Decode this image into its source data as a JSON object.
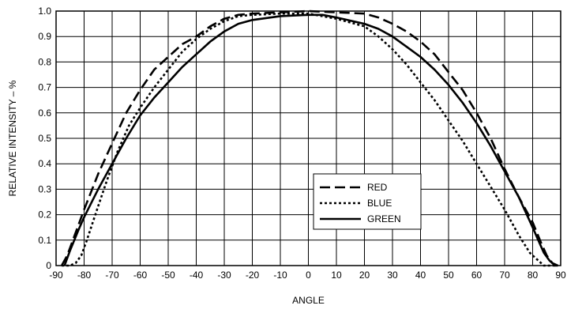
{
  "chart_data": {
    "type": "line",
    "title": "",
    "xlabel": "ANGLE",
    "ylabel": "RELATIVE INTENSITY – %",
    "xlim": [
      -90,
      90
    ],
    "ylim": [
      0,
      1.0
    ],
    "x_ticks": [
      "-90",
      "-80",
      "-70",
      "-60",
      "-50",
      "-40",
      "-30",
      "-20",
      "-10",
      "0",
      "10",
      "20",
      "30",
      "40",
      "50",
      "60",
      "70",
      "80",
      "90"
    ],
    "y_ticks": [
      "0",
      "0.1",
      "0.2",
      "0.3",
      "0.4",
      "0.5",
      "0.6",
      "0.7",
      "0.8",
      "0.9",
      "1.0"
    ],
    "grid": true,
    "legend_position": "lower-center-right",
    "series": [
      {
        "name": "RED",
        "style": "dashed",
        "color": "#000000",
        "x": [
          -88,
          -86,
          -84,
          -82,
          -80,
          -75,
          -70,
          -65,
          -60,
          -55,
          -50,
          -45,
          -40,
          -35,
          -30,
          -25,
          -20,
          -10,
          0,
          10,
          20,
          25,
          30,
          35,
          40,
          45,
          50,
          55,
          60,
          65,
          70,
          75,
          80,
          83,
          85,
          87,
          89
        ],
        "y": [
          0.0,
          0.04,
          0.1,
          0.16,
          0.22,
          0.36,
          0.48,
          0.6,
          0.69,
          0.77,
          0.82,
          0.87,
          0.9,
          0.94,
          0.97,
          0.985,
          0.99,
          0.995,
          1.0,
          0.995,
          0.99,
          0.975,
          0.95,
          0.92,
          0.88,
          0.83,
          0.76,
          0.69,
          0.6,
          0.5,
          0.38,
          0.27,
          0.17,
          0.09,
          0.04,
          0.01,
          0.0
        ]
      },
      {
        "name": "BLUE",
        "style": "dotted",
        "color": "#000000",
        "x": [
          -88,
          -85,
          -83,
          -81,
          -79,
          -76,
          -72,
          -68,
          -64,
          -60,
          -55,
          -50,
          -45,
          -40,
          -35,
          -30,
          -25,
          -20,
          -10,
          0,
          10,
          20,
          25,
          30,
          35,
          40,
          45,
          50,
          55,
          60,
          65,
          70,
          75,
          79,
          82,
          84,
          86,
          88
        ],
        "y": [
          0.0,
          0.0,
          0.01,
          0.04,
          0.1,
          0.2,
          0.33,
          0.45,
          0.55,
          0.62,
          0.7,
          0.77,
          0.84,
          0.89,
          0.93,
          0.96,
          0.98,
          0.985,
          0.99,
          0.99,
          0.97,
          0.94,
          0.9,
          0.85,
          0.79,
          0.72,
          0.65,
          0.57,
          0.49,
          0.4,
          0.31,
          0.22,
          0.12,
          0.05,
          0.02,
          0.0,
          0.0,
          0.0
        ]
      },
      {
        "name": "GREEN",
        "style": "solid",
        "color": "#000000",
        "x": [
          -87,
          -85,
          -82,
          -80,
          -75,
          -70,
          -65,
          -60,
          -55,
          -50,
          -45,
          -40,
          -35,
          -30,
          -25,
          -20,
          -10,
          0,
          5,
          10,
          20,
          25,
          30,
          35,
          40,
          45,
          50,
          55,
          60,
          65,
          70,
          75,
          80,
          82,
          84,
          86,
          88,
          89
        ],
        "y": [
          0.0,
          0.06,
          0.14,
          0.19,
          0.3,
          0.4,
          0.5,
          0.59,
          0.66,
          0.72,
          0.78,
          0.83,
          0.88,
          0.92,
          0.95,
          0.965,
          0.98,
          0.985,
          0.985,
          0.975,
          0.95,
          0.93,
          0.9,
          0.86,
          0.82,
          0.77,
          0.71,
          0.64,
          0.56,
          0.47,
          0.37,
          0.27,
          0.15,
          0.1,
          0.05,
          0.02,
          0.0,
          0.0
        ]
      }
    ]
  }
}
